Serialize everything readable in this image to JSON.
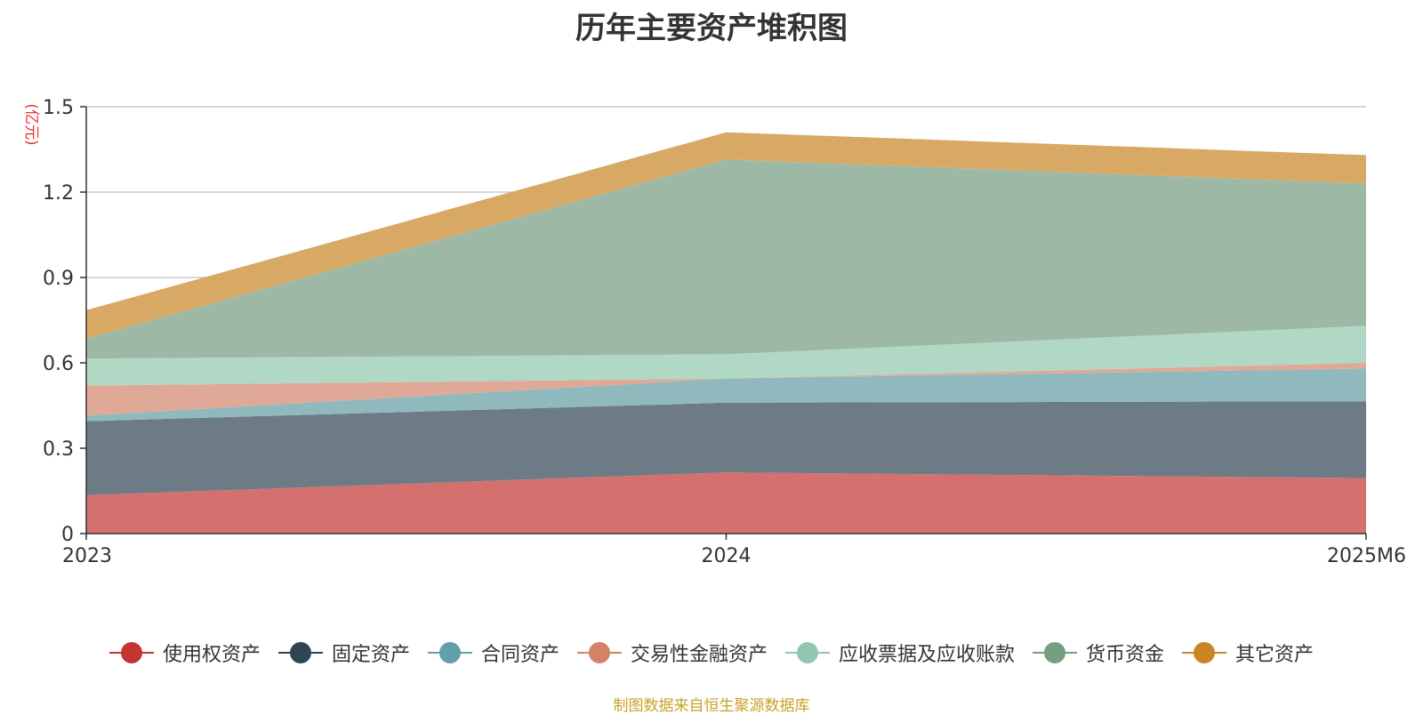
{
  "chart_data": {
    "type": "area",
    "stacked": true,
    "title": "历年主要资产堆积图",
    "unit_label": "(亿元)",
    "categories": [
      "2023",
      "2024",
      "2025M6"
    ],
    "ylim": [
      0,
      1.5
    ],
    "yticks": [
      "0",
      "0.3",
      "0.6",
      "0.9",
      "1.2",
      "1.5"
    ],
    "grid": true,
    "legend_position": "bottom",
    "series": [
      {
        "name": "使用权资产",
        "color": "#c23531",
        "fill": "#d4716e",
        "values": [
          0.135,
          0.215,
          0.195
        ]
      },
      {
        "name": "固定资产",
        "color": "#2f4554",
        "fill": "#6d7b86",
        "values": [
          0.26,
          0.245,
          0.27
        ]
      },
      {
        "name": "合同资产",
        "color": "#61a0a8",
        "fill": "#90b9be",
        "values": [
          0.02,
          0.085,
          0.115
        ]
      },
      {
        "name": "交易性金融资产",
        "color": "#d48265",
        "fill": "#e0a896",
        "values": [
          0.105,
          0.0,
          0.02
        ]
      },
      {
        "name": "应收票据及应收账款",
        "color": "#91c7ae",
        "fill": "#b1d7c5",
        "values": [
          0.095,
          0.085,
          0.13
        ]
      },
      {
        "name": "货币资金",
        "color": "#749f83",
        "fill": "#9db9a6",
        "values": [
          0.07,
          0.685,
          0.5
        ]
      },
      {
        "name": "其它资产",
        "color": "#ca8622",
        "fill": "#d8a964",
        "values": [
          0.1,
          0.095,
          0.1
        ]
      }
    ]
  },
  "source_note": "制图数据来自恒生聚源数据库"
}
